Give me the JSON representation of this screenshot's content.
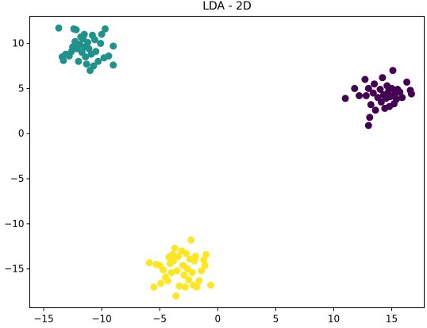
{
  "chart_data": {
    "type": "scatter",
    "title": "LDA - 2D",
    "xlabel": "",
    "ylabel": "",
    "xlim": [
      -16.2,
      17.8
    ],
    "ylim": [
      -19.3,
      13.0
    ],
    "xticks": [
      -15,
      -10,
      -5,
      0,
      5,
      10,
      15
    ],
    "yticks": [
      10,
      5,
      0,
      -5,
      -10,
      -15
    ],
    "xtick_labels": [
      "−15",
      "−10",
      "−5",
      "0",
      "5",
      "10",
      "15"
    ],
    "ytick_labels": [
      "10",
      "5",
      "0",
      "−5",
      "−10",
      "−15"
    ],
    "grid": false,
    "legend": "none",
    "series": [
      {
        "color": "#440154",
        "points": [
          [
            11.0,
            3.9
          ],
          [
            11.8,
            5.0
          ],
          [
            12.2,
            4.2
          ],
          [
            12.7,
            6.0
          ],
          [
            12.8,
            4.2
          ],
          [
            13.0,
            5.0
          ],
          [
            13.0,
            0.9
          ],
          [
            13.1,
            1.8
          ],
          [
            13.2,
            3.2
          ],
          [
            13.4,
            4.5
          ],
          [
            13.5,
            5.5
          ],
          [
            13.6,
            2.6
          ],
          [
            13.8,
            4.0
          ],
          [
            14.0,
            4.9
          ],
          [
            14.1,
            3.5
          ],
          [
            14.2,
            6.2
          ],
          [
            14.3,
            4.3
          ],
          [
            14.4,
            2.8
          ],
          [
            14.5,
            3.9
          ],
          [
            14.6,
            5.3
          ],
          [
            14.7,
            4.6
          ],
          [
            14.8,
            3.0
          ],
          [
            14.9,
            4.1
          ],
          [
            15.0,
            5.0
          ],
          [
            15.1,
            7.0
          ],
          [
            15.2,
            3.3
          ],
          [
            15.3,
            4.4
          ],
          [
            15.4,
            3.8
          ],
          [
            15.5,
            4.9
          ],
          [
            15.7,
            4.6
          ],
          [
            15.9,
            4.0
          ],
          [
            16.3,
            5.7
          ],
          [
            16.6,
            4.8
          ],
          [
            16.7,
            4.4
          ],
          [
            14.6,
            4.0
          ],
          [
            15.2,
            4.2
          ]
        ]
      },
      {
        "color": "#21918c",
        "points": [
          [
            -13.7,
            11.7
          ],
          [
            -13.4,
            8.5
          ],
          [
            -13.3,
            8.1
          ],
          [
            -13.1,
            8.8
          ],
          [
            -12.8,
            8.6
          ],
          [
            -12.6,
            9.1
          ],
          [
            -12.4,
            11.6
          ],
          [
            -12.3,
            10.2
          ],
          [
            -12.2,
            11.5
          ],
          [
            -12.1,
            9.4
          ],
          [
            -12.0,
            8.0
          ],
          [
            -11.9,
            9.9
          ],
          [
            -11.8,
            10.7
          ],
          [
            -11.7,
            9.0
          ],
          [
            -11.6,
            10.5
          ],
          [
            -11.5,
            9.6
          ],
          [
            -11.4,
            8.5
          ],
          [
            -11.3,
            7.7
          ],
          [
            -11.2,
            10.1
          ],
          [
            -11.1,
            9.4
          ],
          [
            -11.0,
            7.0
          ],
          [
            -10.9,
            8.8
          ],
          [
            -10.8,
            10.9
          ],
          [
            -10.7,
            7.5
          ],
          [
            -10.6,
            10.4
          ],
          [
            -10.5,
            9.1
          ],
          [
            -10.3,
            8.0
          ],
          [
            -10.1,
            10.0
          ],
          [
            -10.0,
            11.0
          ],
          [
            -9.8,
            8.4
          ],
          [
            -9.7,
            11.6
          ],
          [
            -9.4,
            8.6
          ],
          [
            -9.0,
            9.7
          ],
          [
            -9.0,
            7.6
          ],
          [
            -11.5,
            11.0
          ],
          [
            -12.5,
            9.6
          ]
        ]
      },
      {
        "color": "#fde725",
        "points": [
          [
            -5.9,
            -14.3
          ],
          [
            -5.5,
            -17.0
          ],
          [
            -5.3,
            -14.5
          ],
          [
            -5.0,
            -14.6
          ],
          [
            -4.9,
            -16.6
          ],
          [
            -4.7,
            -15.1
          ],
          [
            -4.5,
            -15.9
          ],
          [
            -4.3,
            -16.3
          ],
          [
            -4.1,
            -14.4
          ],
          [
            -4.0,
            -15.4
          ],
          [
            -3.9,
            -13.4
          ],
          [
            -3.8,
            -14.1
          ],
          [
            -3.7,
            -12.7
          ],
          [
            -3.6,
            -18.0
          ],
          [
            -3.5,
            -15.2
          ],
          [
            -3.4,
            -13.6
          ],
          [
            -3.3,
            -16.9
          ],
          [
            -3.1,
            -13.0
          ],
          [
            -3.0,
            -14.6
          ],
          [
            -2.9,
            -15.7
          ],
          [
            -2.8,
            -17.0
          ],
          [
            -2.7,
            -13.3
          ],
          [
            -2.6,
            -15.0
          ],
          [
            -2.5,
            -16.2
          ],
          [
            -2.4,
            -13.9
          ],
          [
            -2.3,
            -11.8
          ],
          [
            -2.2,
            -15.4
          ],
          [
            -2.1,
            -16.8
          ],
          [
            -2.0,
            -14.1
          ],
          [
            -1.9,
            -13.6
          ],
          [
            -1.8,
            -17.0
          ],
          [
            -1.6,
            -16.3
          ],
          [
            -1.4,
            -15.2
          ],
          [
            -1.2,
            -14.0
          ],
          [
            -1.0,
            -13.4
          ],
          [
            -0.6,
            -16.8
          ],
          [
            -1.1,
            -14.6
          ],
          [
            -4.2,
            -13.7
          ]
        ]
      }
    ]
  }
}
